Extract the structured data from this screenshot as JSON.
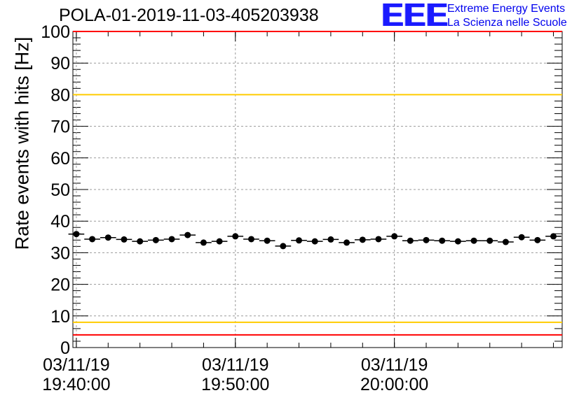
{
  "title": "POLA-01-2019-11-03-405203938",
  "logo": {
    "mark": "EEE",
    "line1": "Extreme Energy Events",
    "line2": "La Scienza nelle Scuole",
    "color": "#0000ee"
  },
  "chart_data": {
    "type": "scatter",
    "title": "POLA-01-2019-11-03-405203938",
    "xlabel": "",
    "ylabel": "Rate events with hits [Hz]",
    "ylim": [
      0,
      100
    ],
    "y_ticks": [
      0,
      10,
      20,
      30,
      40,
      50,
      60,
      70,
      80,
      90,
      100
    ],
    "x_range": [
      "2019-11-03 19:39:47",
      "2019-11-03 20:10:33"
    ],
    "x_ticks": [
      {
        "date": "03/11/19",
        "time": "19:40:00"
      },
      {
        "date": "03/11/19",
        "time": "19:50:00"
      },
      {
        "date": "03/11/19",
        "time": "20:00:00"
      }
    ],
    "grid": true,
    "reference_lines": [
      {
        "y": 100,
        "color": "#ff0000"
      },
      {
        "y": 80,
        "color": "#ffcc00"
      },
      {
        "y": 8,
        "color": "#ffcc00"
      },
      {
        "y": 4,
        "color": "#ff0000"
      }
    ],
    "marker_color": "#000000",
    "bin_width_minutes": 1,
    "series": [
      {
        "x": [
          "19:40:00",
          "19:41:00",
          "19:42:00",
          "19:43:00",
          "19:44:00",
          "19:45:00",
          "19:46:00",
          "19:47:00",
          "19:48:00",
          "19:49:00",
          "19:50:00",
          "19:51:00",
          "19:52:00",
          "19:53:00",
          "19:54:00",
          "19:55:00",
          "19:56:00",
          "19:57:00",
          "19:58:00",
          "19:59:00",
          "20:00:00",
          "20:01:00",
          "20:02:00",
          "20:03:00",
          "20:04:00",
          "20:05:00",
          "20:06:00",
          "20:07:00",
          "20:08:00",
          "20:09:00",
          "20:10:00"
        ],
        "y": [
          35.9,
          34.3,
          34.8,
          34.2,
          33.6,
          34.0,
          34.3,
          35.6,
          33.2,
          33.6,
          35.2,
          34.3,
          33.8,
          32.1,
          33.9,
          33.6,
          34.2,
          33.2,
          34.1,
          34.3,
          35.2,
          33.8,
          34.0,
          33.8,
          33.6,
          33.8,
          33.8,
          33.4,
          34.9,
          34.0,
          35.2
        ]
      }
    ]
  }
}
